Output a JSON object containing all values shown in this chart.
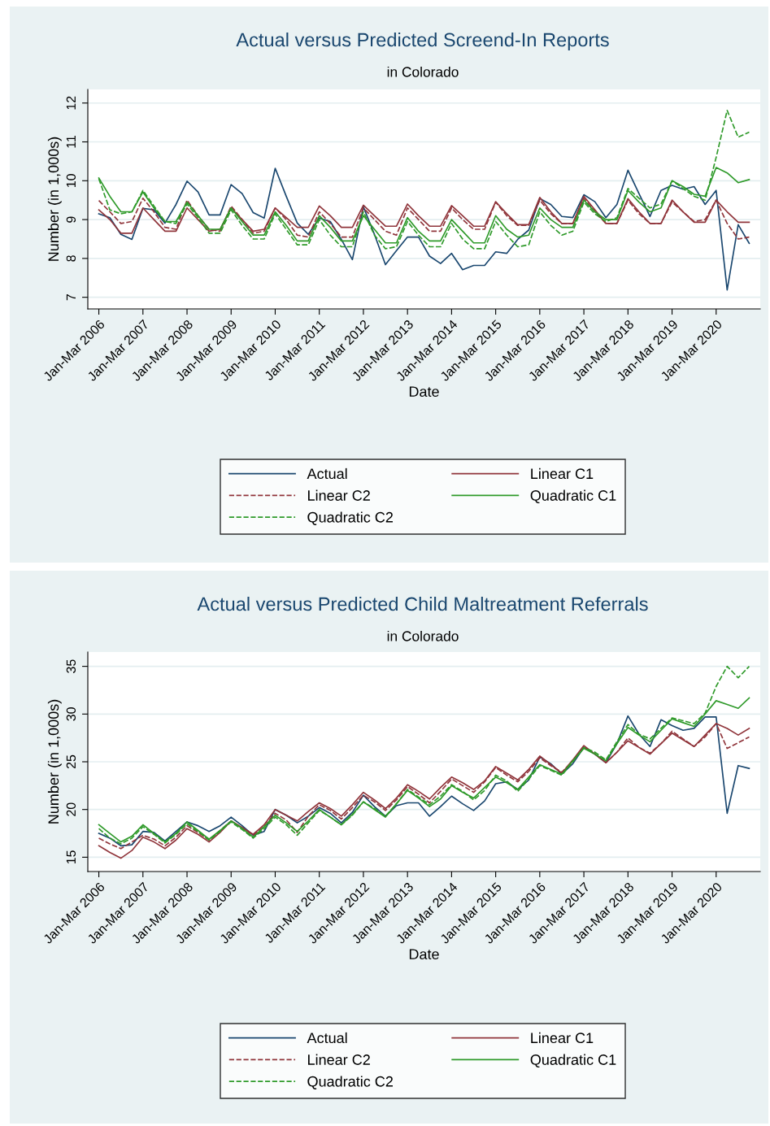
{
  "chart_data": [
    {
      "type": "line",
      "title": "Actual versus Predicted Screend-In Reports",
      "subtitle": "in Colorado",
      "xlabel": "Date",
      "ylabel": "Number (in 1,000s)",
      "grid": "y",
      "legend": "bottom",
      "categories": [
        "Jan-Mar 2006",
        null,
        null,
        null,
        "Jan-Mar 2007",
        null,
        null,
        null,
        "Jan-Mar 2008",
        null,
        null,
        null,
        "Jan-Mar 2009",
        null,
        null,
        null,
        "Jan-Mar 2010",
        null,
        null,
        null,
        "Jan-Mar 2011",
        null,
        null,
        null,
        "Jan-Mar 2012",
        null,
        null,
        null,
        "Jan-Mar 2013",
        null,
        null,
        null,
        "Jan-Mar 2014",
        null,
        null,
        null,
        "Jan-Mar 2015",
        null,
        null,
        null,
        "Jan-Mar 2016",
        null,
        null,
        null,
        "Jan-Mar 2017",
        null,
        null,
        null,
        "Jan-Mar 2018",
        null,
        null,
        null,
        "Jan-Mar 2019",
        null,
        null,
        null,
        "Jan-Mar 2020",
        null,
        null,
        null
      ],
      "ylim": [
        6.7,
        12.35
      ],
      "yticks": [
        7,
        8,
        9,
        10,
        11,
        12
      ],
      "series": [
        {
          "name": "Actual",
          "color": "#1a476f",
          "line_style": "solid",
          "values": [
            9.15,
            9.05,
            8.62,
            8.49,
            9.29,
            9.25,
            8.91,
            9.39,
            9.99,
            9.71,
            9.12,
            9.12,
            9.9,
            9.67,
            9.18,
            9.04,
            10.32,
            9.6,
            8.91,
            8.62,
            9.04,
            8.95,
            8.49,
            7.97,
            9.33,
            8.62,
            7.84,
            8.2,
            8.55,
            8.55,
            8.06,
            7.87,
            8.13,
            7.71,
            7.82,
            7.82,
            8.17,
            8.13,
            8.49,
            8.73,
            9.54,
            9.39,
            9.08,
            9.05,
            9.64,
            9.46,
            9.05,
            9.39,
            10.27,
            9.67,
            9.08,
            9.75,
            9.88,
            9.78,
            9.85,
            9.39,
            9.75,
            7.19,
            8.87,
            8.39
          ]
        },
        {
          "name": "Linear C1",
          "color": "#90353b",
          "line_style": "solid",
          "values": [
            9.25,
            9.0,
            8.65,
            8.65,
            9.3,
            9.0,
            8.7,
            8.7,
            9.3,
            9.0,
            8.7,
            8.75,
            9.3,
            9.0,
            8.7,
            8.75,
            9.3,
            9.05,
            8.8,
            8.8,
            9.35,
            9.1,
            8.8,
            8.8,
            9.37,
            9.1,
            8.83,
            8.83,
            9.4,
            9.1,
            8.83,
            8.83,
            9.36,
            9.1,
            8.83,
            8.83,
            9.46,
            9.15,
            8.87,
            8.87,
            9.57,
            9.2,
            8.9,
            8.9,
            9.6,
            9.25,
            8.9,
            8.9,
            9.54,
            9.2,
            8.9,
            8.9,
            9.5,
            9.2,
            8.93,
            8.93,
            9.5,
            9.2,
            8.93,
            8.93
          ]
        },
        {
          "name": "Linear C2",
          "color": "#90353b",
          "line_style": "dashed",
          "values": [
            9.49,
            9.2,
            8.9,
            8.95,
            9.55,
            9.2,
            8.8,
            8.75,
            9.5,
            9.1,
            8.75,
            8.7,
            9.35,
            9.0,
            8.65,
            8.7,
            9.3,
            9.0,
            8.6,
            8.55,
            9.2,
            8.9,
            8.55,
            8.55,
            9.3,
            9.0,
            8.7,
            8.6,
            9.3,
            9.0,
            8.7,
            8.7,
            9.3,
            9.0,
            8.75,
            8.75,
            9.45,
            9.1,
            8.85,
            8.85,
            9.5,
            9.15,
            8.9,
            8.9,
            9.55,
            9.2,
            8.9,
            8.9,
            9.5,
            9.15,
            8.9,
            8.9,
            9.45,
            9.2,
            8.95,
            9.0,
            9.5,
            8.9,
            8.5,
            8.55
          ]
        },
        {
          "name": "Quadratic C1",
          "color": "#2f9a2a",
          "line_style": "solid",
          "values": [
            10.07,
            9.6,
            9.2,
            9.2,
            9.71,
            9.3,
            8.95,
            8.95,
            9.45,
            9.1,
            8.75,
            8.75,
            9.3,
            8.95,
            8.6,
            8.6,
            9.2,
            8.85,
            8.45,
            8.45,
            9.1,
            8.8,
            8.45,
            8.45,
            9.1,
            8.75,
            8.4,
            8.4,
            9.05,
            8.7,
            8.45,
            8.45,
            9.0,
            8.7,
            8.4,
            8.4,
            9.1,
            8.75,
            8.55,
            8.6,
            9.3,
            9.0,
            8.8,
            8.8,
            9.5,
            9.2,
            9.0,
            9.0,
            9.75,
            9.45,
            9.2,
            9.3,
            10.0,
            9.85,
            9.65,
            9.6,
            10.34,
            10.2,
            9.95,
            10.03
          ]
        },
        {
          "name": "Quadratic C2",
          "color": "#2f9a2a",
          "line_style": "dashed",
          "values": [
            10.05,
            9.25,
            9.15,
            9.2,
            9.75,
            9.35,
            8.95,
            8.9,
            9.4,
            9.05,
            8.65,
            8.65,
            9.25,
            8.85,
            8.5,
            8.5,
            9.15,
            8.75,
            8.35,
            8.35,
            9.0,
            8.6,
            8.3,
            8.3,
            9.2,
            8.6,
            8.25,
            8.3,
            8.95,
            8.6,
            8.3,
            8.3,
            8.9,
            8.5,
            8.25,
            8.25,
            8.95,
            8.6,
            8.3,
            8.35,
            9.2,
            8.85,
            8.6,
            8.7,
            9.45,
            9.15,
            8.95,
            9.05,
            9.8,
            9.55,
            9.3,
            9.4,
            10.0,
            9.8,
            9.6,
            9.5,
            10.6,
            11.81,
            11.12,
            11.25
          ]
        }
      ]
    },
    {
      "type": "line",
      "title": "Actual versus Predicted Child Maltreatment Referrals",
      "subtitle": "in Colorado",
      "xlabel": "Date",
      "ylabel": "Number (in 1,000s)",
      "grid": "y",
      "legend": "bottom",
      "categories": [
        "Jan-Mar 2006",
        null,
        null,
        null,
        "Jan-Mar 2007",
        null,
        null,
        null,
        "Jan-Mar 2008",
        null,
        null,
        null,
        "Jan-Mar 2009",
        null,
        null,
        null,
        "Jan-Mar 2010",
        null,
        null,
        null,
        "Jan-Mar 2011",
        null,
        null,
        null,
        "Jan-Mar 2012",
        null,
        null,
        null,
        "Jan-Mar 2013",
        null,
        null,
        null,
        "Jan-Mar 2014",
        null,
        null,
        null,
        "Jan-Mar 2015",
        null,
        null,
        null,
        "Jan-Mar 2016",
        null,
        null,
        null,
        "Jan-Mar 2017",
        null,
        null,
        null,
        "Jan-Mar 2018",
        null,
        null,
        null,
        "Jan-Mar 2019",
        null,
        null,
        null,
        "Jan-Mar 2020",
        null,
        null,
        null
      ],
      "ylim": [
        13.5,
        36.5
      ],
      "yticks": [
        15,
        20,
        25,
        30,
        35
      ],
      "series": [
        {
          "name": "Actual",
          "color": "#1a476f",
          "line_style": "solid",
          "values": [
            17.5,
            17.0,
            16.2,
            16.3,
            17.7,
            17.6,
            16.7,
            17.7,
            18.7,
            18.3,
            17.7,
            18.3,
            19.2,
            18.3,
            17.3,
            17.7,
            20.0,
            19.4,
            18.6,
            19.3,
            20.2,
            19.6,
            18.6,
            19.7,
            21.5,
            20.3,
            19.3,
            20.4,
            20.7,
            20.7,
            19.3,
            20.3,
            21.4,
            20.6,
            19.9,
            20.9,
            22.7,
            22.9,
            22.1,
            23.1,
            25.5,
            24.8,
            23.7,
            24.8,
            26.5,
            25.8,
            24.9,
            26.9,
            29.8,
            27.9,
            26.6,
            29.4,
            28.8,
            28.3,
            28.5,
            29.7,
            29.7,
            19.6,
            24.6,
            24.3
          ]
        },
        {
          "name": "Linear C1",
          "color": "#90353b",
          "line_style": "solid",
          "values": [
            16.2,
            15.5,
            14.9,
            15.7,
            17.1,
            16.6,
            15.9,
            16.8,
            18.0,
            17.4,
            16.6,
            17.6,
            18.8,
            18.1,
            17.4,
            18.4,
            20.0,
            19.4,
            18.8,
            19.8,
            20.7,
            20.1,
            19.3,
            20.5,
            21.8,
            21.0,
            20.1,
            21.2,
            22.6,
            21.9,
            21.1,
            22.3,
            23.4,
            22.8,
            22.1,
            23.0,
            24.5,
            23.8,
            23.1,
            24.2,
            25.6,
            24.7,
            23.8,
            25.2,
            26.7,
            25.8,
            24.9,
            26.0,
            27.2,
            26.5,
            25.8,
            26.9,
            28.0,
            27.3,
            26.6,
            27.8,
            29.0,
            28.5,
            27.8,
            28.5
          ]
        },
        {
          "name": "Linear C2",
          "color": "#90353b",
          "line_style": "dashed",
          "values": [
            17.0,
            16.4,
            15.9,
            16.6,
            17.3,
            16.9,
            16.2,
            17.1,
            18.3,
            17.6,
            16.8,
            17.8,
            18.8,
            18.1,
            17.3,
            18.2,
            19.6,
            18.9,
            17.6,
            19.3,
            20.5,
            19.9,
            19.0,
            20.2,
            21.5,
            20.8,
            19.9,
            21.0,
            22.4,
            21.6,
            20.7,
            21.9,
            23.2,
            22.5,
            21.8,
            22.9,
            24.4,
            23.6,
            22.9,
            24.0,
            25.4,
            24.6,
            23.9,
            25.1,
            26.6,
            25.8,
            24.9,
            26.0,
            27.5,
            26.5,
            25.9,
            26.9,
            28.2,
            27.4,
            26.6,
            27.6,
            29.0,
            26.4,
            27.0,
            27.6
          ]
        },
        {
          "name": "Quadratic C1",
          "color": "#2f9a2a",
          "line_style": "solid",
          "values": [
            18.4,
            17.5,
            16.6,
            17.2,
            18.4,
            17.5,
            16.6,
            17.5,
            18.7,
            17.8,
            16.9,
            17.8,
            18.8,
            18.0,
            17.1,
            18.2,
            19.4,
            18.6,
            17.7,
            18.8,
            20.0,
            19.2,
            18.4,
            19.5,
            20.8,
            20.0,
            19.2,
            20.6,
            22.0,
            21.2,
            20.3,
            21.1,
            22.5,
            21.8,
            21.2,
            22.3,
            23.4,
            22.8,
            22.1,
            23.4,
            24.7,
            24.2,
            23.7,
            25.1,
            26.4,
            25.8,
            25.1,
            26.9,
            28.6,
            27.8,
            27.1,
            28.3,
            29.5,
            29.1,
            28.7,
            30.0,
            31.4,
            31.0,
            30.6,
            31.7
          ]
        },
        {
          "name": "Quadratic C2",
          "color": "#2f9a2a",
          "line_style": "dashed",
          "values": [
            18.0,
            17.0,
            16.4,
            17.0,
            18.2,
            17.4,
            16.5,
            17.4,
            18.5,
            17.7,
            16.8,
            17.7,
            18.7,
            17.9,
            17.0,
            18.0,
            19.2,
            18.4,
            17.3,
            18.6,
            19.9,
            19.2,
            18.4,
            19.4,
            20.8,
            20.1,
            19.3,
            20.6,
            22.1,
            21.3,
            20.5,
            21.4,
            22.6,
            21.9,
            21.0,
            22.0,
            23.6,
            23.0,
            21.9,
            23.2,
            24.6,
            24.1,
            23.6,
            25.0,
            26.5,
            26.0,
            25.2,
            27.1,
            28.9,
            27.9,
            27.4,
            28.5,
            29.6,
            29.3,
            29.0,
            30.1,
            32.9,
            35.0,
            33.8,
            35.0
          ]
        }
      ]
    }
  ]
}
